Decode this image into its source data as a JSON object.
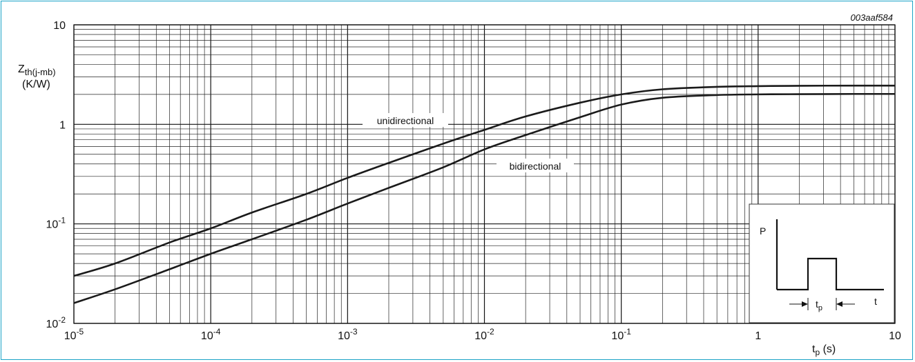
{
  "chart_data": {
    "type": "line",
    "figure_id": "003aaf584",
    "ylabel_main": "Z",
    "ylabel_sub": "th(j-mb)",
    "ylabel_unit": "(K/W)",
    "xlabel_main": "t",
    "xlabel_sub": "p",
    "xlabel_unit": " (s)",
    "x_scale": "log",
    "y_scale": "log",
    "xlim": [
      1e-05,
      10
    ],
    "ylim": [
      0.01,
      10
    ],
    "grid": true,
    "x_ticks": [
      {
        "value": 1e-05,
        "base": "10",
        "exp": "-5"
      },
      {
        "value": 0.0001,
        "base": "10",
        "exp": "-4"
      },
      {
        "value": 0.001,
        "base": "10",
        "exp": "-3"
      },
      {
        "value": 0.01,
        "base": "10",
        "exp": "-2"
      },
      {
        "value": 0.1,
        "base": "10",
        "exp": "-1"
      },
      {
        "value": 1,
        "base": "1",
        "exp": ""
      },
      {
        "value": 10,
        "base": "10",
        "exp": ""
      }
    ],
    "y_ticks": [
      {
        "value": 0.01,
        "base": "10",
        "exp": "-2"
      },
      {
        "value": 0.1,
        "base": "10",
        "exp": "-1"
      },
      {
        "value": 1,
        "base": "1",
        "exp": ""
      },
      {
        "value": 10,
        "base": "10",
        "exp": ""
      }
    ],
    "series": [
      {
        "name": "unidirectional",
        "points": [
          [
            1e-05,
            0.03
          ],
          [
            2e-05,
            0.04
          ],
          [
            5e-05,
            0.065
          ],
          [
            0.0001,
            0.09
          ],
          [
            0.0002,
            0.13
          ],
          [
            0.0005,
            0.2
          ],
          [
            0.001,
            0.29
          ],
          [
            0.002,
            0.41
          ],
          [
            0.005,
            0.64
          ],
          [
            0.01,
            0.88
          ],
          [
            0.02,
            1.2
          ],
          [
            0.05,
            1.65
          ],
          [
            0.1,
            2.0
          ],
          [
            0.2,
            2.25
          ],
          [
            0.5,
            2.38
          ],
          [
            1,
            2.42
          ],
          [
            2,
            2.44
          ],
          [
            5,
            2.45
          ],
          [
            10,
            2.45
          ]
        ]
      },
      {
        "name": "bidirectional",
        "points": [
          [
            1e-05,
            0.016
          ],
          [
            2e-05,
            0.022
          ],
          [
            5e-05,
            0.035
          ],
          [
            0.0001,
            0.05
          ],
          [
            0.0002,
            0.07
          ],
          [
            0.0005,
            0.11
          ],
          [
            0.001,
            0.16
          ],
          [
            0.002,
            0.23
          ],
          [
            0.005,
            0.37
          ],
          [
            0.01,
            0.56
          ],
          [
            0.02,
            0.78
          ],
          [
            0.05,
            1.18
          ],
          [
            0.1,
            1.58
          ],
          [
            0.2,
            1.85
          ],
          [
            0.5,
            1.97
          ],
          [
            1,
            2.0
          ],
          [
            2,
            2.01
          ],
          [
            5,
            2.02
          ],
          [
            10,
            2.02
          ]
        ]
      }
    ],
    "inset": {
      "y_label": "P",
      "x_label": "t",
      "pulse_label_main": "t",
      "pulse_label_sub": "p"
    }
  }
}
